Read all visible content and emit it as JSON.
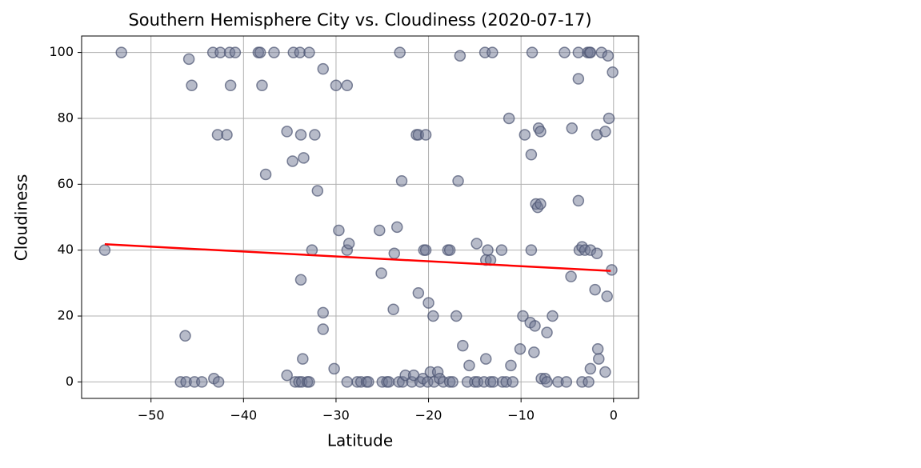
{
  "chart_data": {
    "type": "scatter",
    "title": "Southern Hemisphere City vs. Cloudiness (2020-07-17)",
    "x_label": "Latitude",
    "y_label": "Cloudiness",
    "xlim": [
      -57.5,
      2.7
    ],
    "ylim": [
      -5,
      105
    ],
    "xticks": [
      {
        "value": -50,
        "label": "−50"
      },
      {
        "value": -40,
        "label": "−40"
      },
      {
        "value": -30,
        "label": "−30"
      },
      {
        "value": -20,
        "label": "−20"
      },
      {
        "value": -10,
        "label": "−10"
      },
      0
    ],
    "yticks": [
      0,
      20,
      40,
      60,
      80,
      100
    ],
    "grid": true,
    "series": [
      {
        "color": "#6f7894",
        "edge_color": "#4a5270",
        "x": [
          -53.2,
          -55,
          -45.9,
          -45.6,
          -46.3,
          -46.8,
          -46.2,
          -45.3,
          -44.5,
          -43.3,
          -42.5,
          -43.2,
          -42.7,
          -42.8,
          -41.8,
          -41.5,
          -41.4,
          -40.9,
          -38.4,
          -38.2,
          -38,
          -37.6,
          -36.7,
          -35.3,
          -35.3,
          -34.7,
          -34.6,
          -34.4,
          -34,
          -33.9,
          -33.8,
          -33.8,
          -33.6,
          -33.5,
          -33.7,
          -33.1,
          -32.9,
          -32.9,
          -32.6,
          -32.3,
          -32,
          -31.4,
          -31.4,
          -31.4,
          -30.2,
          -30,
          -29.7,
          -28.8,
          -28.8,
          -28.6,
          -28.8,
          -27.7,
          -27.3,
          -26.7,
          -26.5,
          -25.3,
          -25.1,
          -25,
          -24.5,
          -24.3,
          -23.8,
          -23.7,
          -23.4,
          -23.1,
          -22.9,
          -23.2,
          -22.8,
          -22.5,
          -21.8,
          -21.6,
          -21.3,
          -21.1,
          -21.1,
          -20.9,
          -20.6,
          -20.5,
          -20.3,
          -20.3,
          -20.1,
          -20,
          -19.8,
          -19.5,
          -19.4,
          -19,
          -18.8,
          -18.4,
          -17.9,
          -17.7,
          -17.7,
          -17.4,
          -17,
          -16.8,
          -16.6,
          -16.3,
          -15.8,
          -15.6,
          -15,
          -14.8,
          -14.7,
          -14,
          -13.9,
          -13.8,
          -13.8,
          -13.6,
          -13.3,
          -13.3,
          -13.1,
          -13,
          -12.1,
          -12,
          -11.6,
          -11.3,
          -11.1,
          -10.9,
          -10.1,
          -9.8,
          -9.6,
          -9,
          -8.9,
          -8.8,
          -8.9,
          -8.6,
          -8.5,
          -8.4,
          -8.2,
          -8.1,
          -7.9,
          -7.9,
          -7.8,
          -7.4,
          -7.2,
          -7.2,
          -6.6,
          -6,
          -5.3,
          -5.1,
          -4.6,
          -4.5,
          -3.8,
          -3.8,
          -3.8,
          -3.7,
          -3.4,
          -3.4,
          -3.1,
          -2.8,
          -2.6,
          -2.7,
          -2.5,
          -2.5,
          -2.5,
          -2,
          -1.8,
          -1.8,
          -1.7,
          -1.6,
          -1.3,
          -0.9,
          -0.9,
          -0.7,
          -0.6,
          -0.5,
          -0.2,
          -0.1
        ],
        "values": [
          100,
          40,
          98,
          90,
          14,
          0,
          0,
          0,
          0,
          100,
          100,
          1,
          0,
          75,
          75,
          100,
          90,
          100,
          100,
          100,
          90,
          63,
          100,
          76,
          2,
          67,
          100,
          0,
          0,
          100,
          75,
          31,
          7,
          68,
          0,
          0,
          100,
          0,
          40,
          75,
          58,
          95,
          21,
          16,
          4,
          90,
          46,
          90,
          40,
          42,
          0,
          0,
          0,
          0,
          0,
          46,
          33,
          0,
          0,
          0,
          22,
          39,
          47,
          100,
          61,
          0,
          0,
          2,
          0,
          2,
          75,
          75,
          27,
          0,
          1,
          40,
          40,
          75,
          0,
          24,
          3,
          20,
          0,
          3,
          1,
          0,
          40,
          40,
          0,
          0,
          20,
          61,
          99,
          11,
          0,
          5,
          0,
          42,
          0,
          0,
          100,
          7,
          37,
          40,
          37,
          0,
          100,
          0,
          40,
          0,
          0,
          80,
          5,
          0,
          10,
          20,
          75,
          18,
          40,
          100,
          69,
          9,
          17,
          54,
          53,
          77,
          54,
          76,
          1,
          1,
          0,
          15,
          20,
          0,
          100,
          0,
          32,
          77,
          55,
          100,
          92,
          40,
          41,
          0,
          40,
          100,
          100,
          0,
          4,
          100,
          40,
          28,
          39,
          75,
          10,
          7,
          100,
          76,
          3,
          26,
          99,
          80,
          34,
          94
        ]
      }
    ],
    "regression": {
      "x": [
        -55,
        -0.3
      ],
      "values": [
        41.8,
        33.7
      ],
      "color": "#ff0000"
    }
  }
}
